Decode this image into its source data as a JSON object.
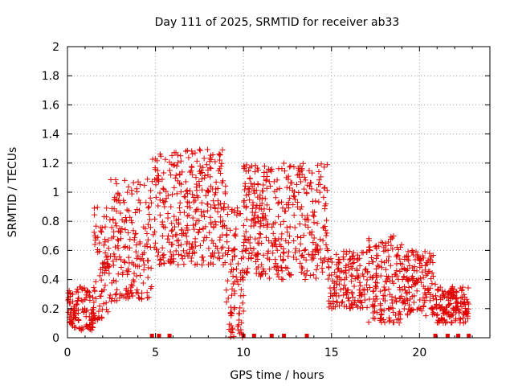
{
  "chart_data": {
    "type": "scatter",
    "title": "Day 111 of 2025, SRMTID for receiver ab33",
    "xlabel": "GPS time / hours",
    "ylabel": "SRMTID / TECUs",
    "xlim": [
      0,
      24
    ],
    "ylim": [
      0,
      2
    ],
    "xticks": [
      0,
      5,
      10,
      15,
      20
    ],
    "xtick_labels": [
      "0",
      "5",
      "10",
      "15",
      "20"
    ],
    "yticks": [
      0,
      0.2,
      0.4,
      0.6,
      0.8,
      1,
      1.2,
      1.4,
      1.6,
      1.8,
      2
    ],
    "ytick_labels": [
      "0",
      "0.2",
      "0.4",
      "0.6",
      "0.8",
      "1",
      "1.2",
      "1.4",
      "1.6",
      "1.8",
      "2"
    ],
    "grid": true,
    "marker": "+",
    "color": "#e00000",
    "series": [
      {
        "name": "SRMTID",
        "x": [
          0.05,
          0.1,
          0.15,
          0.2,
          0.3,
          0.35,
          0.4,
          0.5,
          0.55,
          0.6,
          0.7,
          0.8,
          0.9,
          1.0,
          1.1,
          1.2,
          1.3,
          1.4,
          1.5,
          1.6,
          1.7,
          1.8,
          1.9,
          2.0,
          2.1,
          2.2,
          2.3,
          2.35,
          2.4,
          2.5,
          2.6,
          2.7,
          2.8,
          2.9,
          3.0,
          3.1,
          3.2,
          3.3,
          3.35,
          3.4,
          3.5,
          3.6,
          3.7,
          3.8,
          3.9,
          4.0,
          4.1,
          4.2,
          4.3,
          4.4,
          4.5,
          4.6,
          4.7,
          4.8,
          4.9,
          5.0,
          5.1,
          5.2,
          5.25,
          5.3,
          5.4,
          5.5,
          5.6,
          5.7,
          5.8,
          5.9,
          6.0,
          6.1,
          6.2,
          6.3,
          6.4,
          6.5,
          6.6,
          6.7,
          6.8,
          6.9,
          7.0,
          7.1,
          7.2,
          7.3,
          7.4,
          7.5,
          7.6,
          7.7,
          7.8,
          7.9,
          8.0,
          8.1,
          8.2,
          8.3,
          8.4,
          8.5,
          8.6,
          8.7,
          8.8,
          8.9,
          9.0,
          9.1,
          9.2,
          9.3,
          9.4,
          9.5,
          9.6,
          9.7,
          9.8,
          9.9,
          10.0,
          10.1,
          10.2,
          10.3,
          10.4,
          10.5,
          10.6,
          10.7,
          10.8,
          10.9,
          11.0,
          11.1,
          11.2,
          11.3,
          11.4,
          11.5,
          11.6,
          11.7,
          11.8,
          11.9,
          12.0,
          12.1,
          12.2,
          12.3,
          12.4,
          12.5,
          12.6,
          12.7,
          12.8,
          12.9,
          13.0,
          13.1,
          13.2,
          13.3,
          13.4,
          13.5,
          13.6,
          13.7,
          13.8,
          13.9,
          14.0,
          14.1,
          14.2,
          14.3,
          14.4,
          14.5,
          14.6,
          14.7,
          14.8,
          14.9,
          15.0,
          15.1,
          15.2,
          15.3,
          15.4,
          15.5,
          15.6,
          15.7,
          15.8,
          15.9,
          16.0,
          16.1,
          16.2,
          16.3,
          16.4,
          16.5,
          16.6,
          16.7,
          16.8,
          16.9,
          17.0,
          17.1,
          17.2,
          17.3,
          17.4,
          17.5,
          17.6,
          17.7,
          17.8,
          17.9,
          18.0,
          18.1,
          18.2,
          18.3,
          18.4,
          18.5,
          18.6,
          18.7,
          18.8,
          18.9,
          19.0,
          19.1,
          19.2,
          19.3,
          19.4,
          19.5,
          19.6,
          19.7,
          19.8,
          19.9,
          20.0,
          20.1,
          20.2,
          20.3,
          20.4,
          20.5,
          20.6,
          20.7,
          20.8,
          20.9,
          21.0,
          21.1,
          21.2,
          21.3,
          21.4,
          21.5,
          21.6,
          21.7,
          21.8,
          21.9,
          22.0,
          22.1,
          22.2,
          22.3,
          22.4,
          22.5,
          22.6,
          22.7,
          22.8,
          0.2,
          0.3,
          0.15,
          0.25,
          0.1,
          0.2,
          0.18,
          0.22,
          0.12,
          0.3,
          0.15,
          0.2,
          0.25,
          0.1,
          0.2,
          0.28,
          0.35,
          0.4,
          0.5,
          0.6,
          0.45,
          0.3,
          0.55,
          0.7,
          0.85,
          0.9,
          1.45,
          1.81,
          0.8,
          0.5,
          0.6,
          0.7,
          0.45,
          0.9,
          1.0,
          1.2,
          1.5,
          1.55,
          0.75,
          0.6,
          0.5,
          0.8,
          0.65,
          0.55,
          1.25,
          1.1,
          0.95,
          1.15,
          0.7,
          0.5,
          0.6,
          0.4,
          0.3,
          0.2,
          1.0,
          1.2,
          1.82,
          1.9,
          1.6,
          1.4,
          1.3,
          1.1,
          0.9,
          0.7,
          1.25,
          1.35,
          0.8,
          0.65,
          0.9,
          1.0,
          0.75,
          1.15,
          0.6,
          0.7,
          0.85,
          1.3,
          1.1,
          1.56,
          1.0,
          0.8,
          1.2,
          1.4,
          0.95,
          0.75,
          1.95,
          1.85,
          0.6,
          0.3,
          0.2,
          0.4,
          0.1,
          0.05,
          1.3,
          1.45,
          0.5,
          0.35,
          0.15,
          0.1,
          0.25,
          1.4,
          1.1,
          1.9,
          0.9,
          0.7,
          1.62,
          1.5,
          1.3,
          1.2,
          1.05,
          0.85,
          1.9,
          1.0,
          0.6,
          0.5,
          0.45,
          0.55,
          1.15,
          1.0,
          0.8,
          1.5,
          0.7,
          1.3,
          1.0,
          1.05,
          1.1,
          0.95,
          0.85,
          0.65,
          0.75,
          0.55,
          1.25,
          0.9,
          0.8,
          0.4,
          1.4,
          1.55,
          1.3,
          0.7,
          0.6,
          0.5,
          1.25,
          1.2,
          1.05,
          0.85,
          0.55,
          0.35,
          0.45,
          0.4,
          0.5,
          0.3,
          0.35,
          0.4,
          0.45,
          0.5,
          0.25,
          0.3,
          0.6,
          0.4,
          0.55,
          0.3,
          0.35,
          0.4,
          0.45,
          0.5,
          0.2,
          0.3,
          0.35,
          0.25,
          0.3,
          0.45,
          0.2,
          0.15,
          0.25,
          0.3,
          0.65,
          1.18,
          0.7,
          0.5,
          0.3,
          0.2,
          0.1,
          0.15,
          0.35,
          0.4,
          0.45,
          1.03,
          0.75,
          0.6,
          0.4,
          0.3,
          0.2,
          0.1,
          0.25,
          0.35,
          0.45,
          0.55,
          0.3,
          0.25,
          0.5,
          0.35,
          0.4,
          0.6,
          0.3,
          0.2,
          0.15,
          0.35,
          0.25,
          0.2,
          0.3,
          0.25,
          0.15,
          0.2,
          0.3,
          0.35,
          0.2,
          0.22,
          0.18,
          0.25,
          0.3,
          0.15,
          0.2,
          0.25
        ]
      }
    ],
    "flag_points_x": [
      4.8,
      5.2,
      5.8,
      10.0,
      10.6,
      11.6,
      12.3,
      13.6,
      20.9,
      21.6,
      22.2,
      22.8
    ]
  }
}
